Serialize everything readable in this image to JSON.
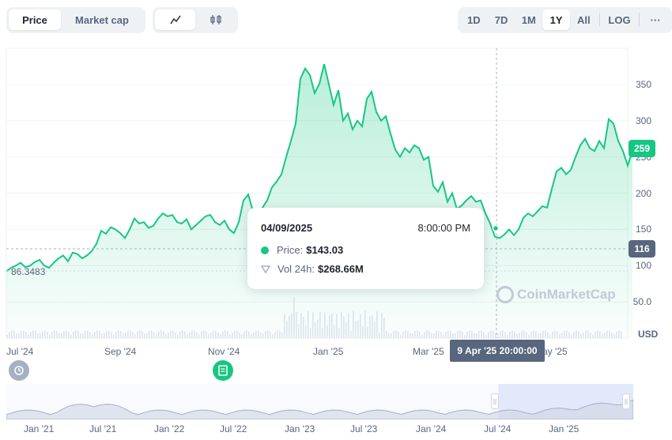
{
  "toolbar": {
    "type_tabs": [
      "Price",
      "Market cap"
    ],
    "active_type": "Price",
    "style_icons": [
      "line-chart-icon",
      "candlestick-icon"
    ],
    "range_tabs": [
      "1D",
      "7D",
      "1M",
      "1Y",
      "All"
    ],
    "active_range": "1Y",
    "log_label": "LOG",
    "more_label": "···"
  },
  "chart_data": {
    "type": "area",
    "y_ticks": [
      "350",
      "300",
      "250",
      "200",
      "150",
      "100",
      "50.0"
    ],
    "x_ticks": [
      "Jul '24",
      "Sep '24",
      "Nov '24",
      "Jan '25",
      "Mar '25",
      "May '25"
    ],
    "ylim": [
      0,
      400
    ],
    "unit": "USD",
    "current_price": "259",
    "crosshair_price": "116",
    "low_label": "86.3483",
    "series_points": [
      [
        0,
        92
      ],
      [
        6,
        97
      ],
      [
        12,
        100
      ],
      [
        18,
        104
      ],
      [
        24,
        98
      ],
      [
        30,
        100
      ],
      [
        36,
        105
      ],
      [
        42,
        108
      ],
      [
        48,
        100
      ],
      [
        54,
        97
      ],
      [
        60,
        104
      ],
      [
        66,
        110
      ],
      [
        72,
        114
      ],
      [
        78,
        106
      ],
      [
        84,
        118
      ],
      [
        90,
        116
      ],
      [
        96,
        110
      ],
      [
        102,
        114
      ],
      [
        108,
        120
      ],
      [
        114,
        130
      ],
      [
        120,
        148
      ],
      [
        126,
        144
      ],
      [
        132,
        153
      ],
      [
        138,
        150
      ],
      [
        144,
        145
      ],
      [
        150,
        138
      ],
      [
        156,
        150
      ],
      [
        162,
        165
      ],
      [
        168,
        158
      ],
      [
        174,
        160
      ],
      [
        180,
        152
      ],
      [
        186,
        155
      ],
      [
        192,
        165
      ],
      [
        198,
        172
      ],
      [
        204,
        168
      ],
      [
        210,
        170
      ],
      [
        216,
        160
      ],
      [
        222,
        158
      ],
      [
        228,
        164
      ],
      [
        234,
        150
      ],
      [
        240,
        156
      ],
      [
        246,
        162
      ],
      [
        252,
        168
      ],
      [
        258,
        170
      ],
      [
        264,
        160
      ],
      [
        270,
        156
      ],
      [
        276,
        162
      ],
      [
        282,
        150
      ],
      [
        288,
        145
      ],
      [
        294,
        160
      ],
      [
        300,
        190
      ],
      [
        306,
        198
      ],
      [
        312,
        175
      ],
      [
        318,
        160
      ],
      [
        324,
        180
      ],
      [
        330,
        190
      ],
      [
        336,
        208
      ],
      [
        342,
        216
      ],
      [
        348,
        226
      ],
      [
        354,
        250
      ],
      [
        360,
        272
      ],
      [
        366,
        296
      ],
      [
        372,
        358
      ],
      [
        378,
        372
      ],
      [
        384,
        363
      ],
      [
        390,
        338
      ],
      [
        396,
        351
      ],
      [
        402,
        378
      ],
      [
        408,
        350
      ],
      [
        414,
        322
      ],
      [
        420,
        342
      ],
      [
        426,
        300
      ],
      [
        432,
        310
      ],
      [
        438,
        288
      ],
      [
        444,
        300
      ],
      [
        450,
        292
      ],
      [
        456,
        330
      ],
      [
        462,
        340
      ],
      [
        468,
        312
      ],
      [
        474,
        300
      ],
      [
        480,
        306
      ],
      [
        486,
        282
      ],
      [
        492,
        260
      ],
      [
        498,
        250
      ],
      [
        504,
        262
      ],
      [
        510,
        256
      ],
      [
        516,
        266
      ],
      [
        522,
        262
      ],
      [
        528,
        246
      ],
      [
        534,
        250
      ],
      [
        540,
        210
      ],
      [
        546,
        202
      ],
      [
        552,
        215
      ],
      [
        558,
        188
      ],
      [
        564,
        200
      ],
      [
        570,
        178
      ],
      [
        576,
        183
      ],
      [
        582,
        190
      ],
      [
        588,
        196
      ],
      [
        594,
        188
      ],
      [
        600,
        190
      ],
      [
        606,
        172
      ],
      [
        612,
        158
      ],
      [
        618,
        140
      ],
      [
        624,
        138
      ],
      [
        630,
        143
      ],
      [
        636,
        150
      ],
      [
        642,
        142
      ],
      [
        648,
        150
      ],
      [
        654,
        166
      ],
      [
        660,
        172
      ],
      [
        666,
        168
      ],
      [
        672,
        175
      ],
      [
        678,
        182
      ],
      [
        684,
        180
      ],
      [
        690,
        206
      ],
      [
        696,
        230
      ],
      [
        702,
        235
      ],
      [
        708,
        226
      ],
      [
        714,
        232
      ],
      [
        720,
        250
      ],
      [
        726,
        266
      ],
      [
        732,
        275
      ],
      [
        738,
        262
      ],
      [
        744,
        258
      ],
      [
        750,
        272
      ],
      [
        756,
        262
      ],
      [
        762,
        302
      ],
      [
        768,
        296
      ],
      [
        774,
        272
      ],
      [
        780,
        258
      ],
      [
        786,
        238
      ],
      [
        792,
        259
      ]
    ]
  },
  "tooltip": {
    "date": "04/09/2025",
    "time": "8:00:00 PM",
    "price_label": "Price:",
    "price_value": "$143.03",
    "vol_label": "Vol 24h:",
    "vol_value": "$268.66M"
  },
  "crosshair_date": "9 Apr '25 20:00:00",
  "watermark": "CoinMarketCap",
  "navigator": {
    "labels": [
      "Jan '21",
      "Jul '21",
      "Jan '22",
      "Jul '22",
      "Jan '23",
      "Jul '23",
      "Jan '24",
      "Jul '24",
      "Jan '25"
    ],
    "selected_fraction": [
      0.785,
      1.0
    ]
  },
  "colors": {
    "accent": "#16c784",
    "grey": "#58667e"
  }
}
